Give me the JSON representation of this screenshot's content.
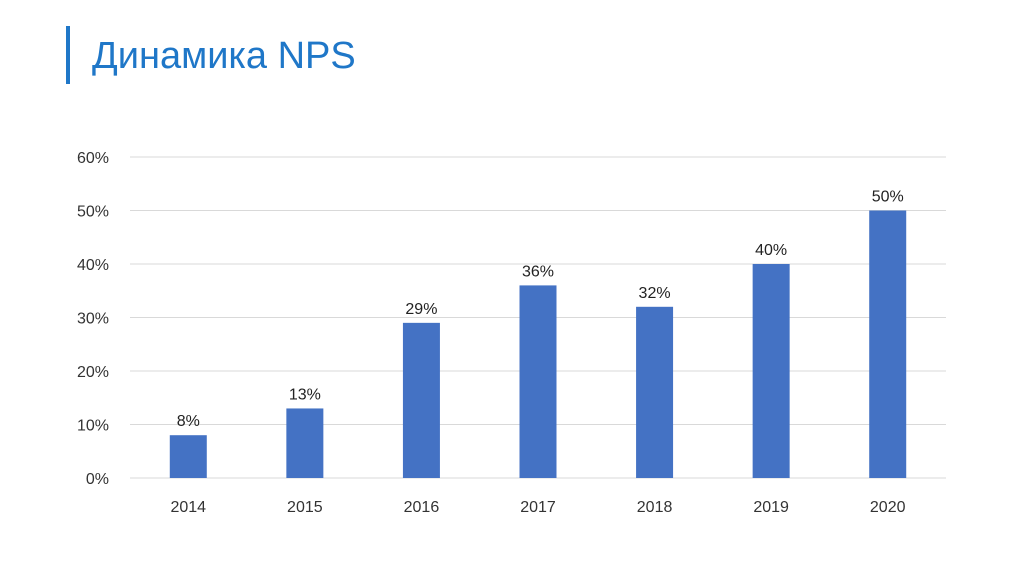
{
  "title": "Динамика NPS",
  "colors": {
    "accent": "#1f77c8",
    "bar": "#4472c4",
    "grid": "#d9d9d9"
  },
  "chart_data": {
    "type": "bar",
    "title": "",
    "xlabel": "",
    "ylabel": "",
    "categories": [
      "2014",
      "2015",
      "2016",
      "2017",
      "2018",
      "2019",
      "2020"
    ],
    "values": [
      8,
      13,
      29,
      36,
      32,
      40,
      50
    ],
    "data_labels": [
      "8%",
      "13%",
      "29%",
      "36%",
      "32%",
      "40%",
      "50%"
    ],
    "ylim": [
      0,
      60
    ],
    "y_ticks": [
      0,
      10,
      20,
      30,
      40,
      50,
      60
    ],
    "y_tick_labels": [
      "0%",
      "10%",
      "20%",
      "30%",
      "40%",
      "50%",
      "60%"
    ],
    "grid": true,
    "legend": "none"
  }
}
